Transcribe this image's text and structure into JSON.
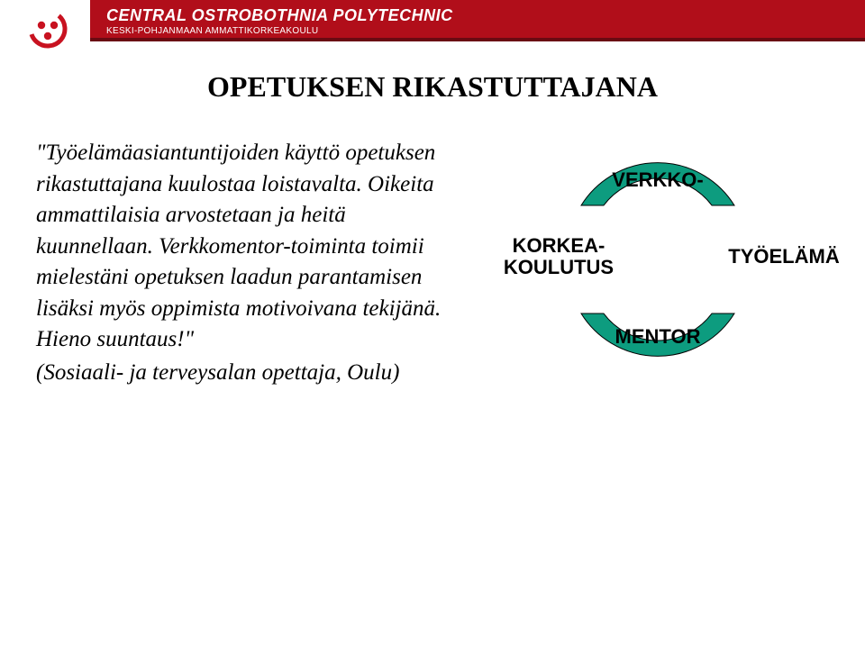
{
  "header": {
    "title": "CENTRAL OSTROBOTHNIA POLYTECHNIC",
    "subtitle": "KESKI-POHJANMAAN AMMATTIKORKEAKOULU",
    "brand_color": "#b10e1a",
    "accent_color": "#6a0a12",
    "logo_color": "#c81220"
  },
  "slide": {
    "title": "OPETUKSEN RIKASTUTTAJANA",
    "title_fontsize": 32,
    "quote": "\"Työelämäasiantuntijoiden käyttö opetuksen rikastuttajana kuulostaa loistavalta. Oikeita ammattilaisia arvostetaan ja heitä kuunnellaan. Verkkomentor-toiminta toimii mielestäni opetuksen laadun parantamisen lisäksi myös oppimista motivoivana tekijänä. Hieno suuntaus!\"",
    "attribution": "(Sosiaali- ja terveysalan opettaja, Oulu)",
    "quote_fontsize": 25
  },
  "diagram": {
    "type": "infographic",
    "arc_fill": "#0d9c7f",
    "arc_stroke": "#000000",
    "label_fontsize": 22,
    "top_label": "VERKKO-",
    "bottom_label": "MENTOR",
    "left_label": "KORKEA-\nKOULUTUS",
    "right_label": "TYÖELÄMÄ",
    "background_color": "#ffffff"
  }
}
